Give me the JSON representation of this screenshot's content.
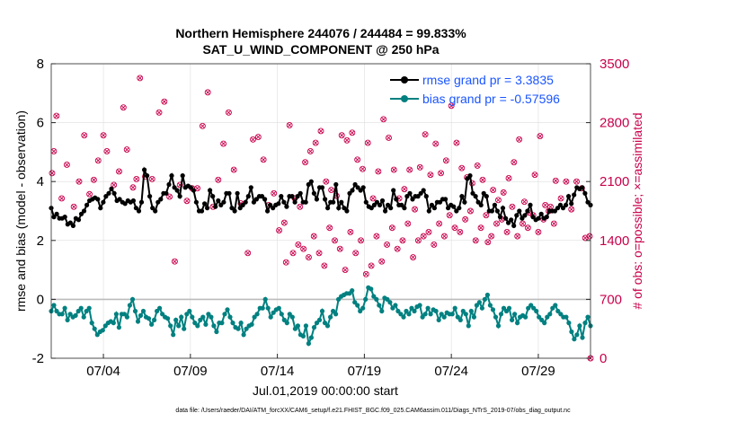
{
  "chart_data": {
    "type": "line",
    "title": "Northern Hemisphere 244076 / 244484 = 99.833%",
    "subtitle": "SAT_U_WIND_COMPONENT @ 250 hPa",
    "xlabel": "Jul.01,2019 00:00:00 start",
    "ylabel": "rmse and bias (model - observation)",
    "y2label": "# of obs: o=possible; ×=assimilated",
    "xticks": [
      {
        "day": 4,
        "label": "07/04"
      },
      {
        "day": 9,
        "label": "07/09"
      },
      {
        "day": 14,
        "label": "07/14"
      },
      {
        "day": 19,
        "label": "07/19"
      },
      {
        "day": 24,
        "label": "07/24"
      },
      {
        "day": 29,
        "label": "07/29"
      }
    ],
    "xlim": [
      1,
      32
    ],
    "ylim": [
      -2,
      8
    ],
    "yticks": [
      -2,
      0,
      2,
      4,
      6,
      8
    ],
    "y2lim": [
      0,
      3500
    ],
    "y2ticks": [
      0,
      700,
      1400,
      2100,
      2800,
      3500
    ],
    "zero_line": 0,
    "footnote": "data file: /Users/raeder/DAI/ATM_forcXX/CAM6_setup/f.e21.FHIST_BGC.f09_025.CAM6assim.011/Diags_NTrS_2019-07/obs_diag_output.nc",
    "series": [
      {
        "name": "rmse grand pr = 3.3835",
        "color": "#000000",
        "values": [
          3.1,
          2.8,
          2.9,
          2.75,
          2.75,
          2.8,
          2.55,
          2.6,
          2.5,
          2.75,
          2.7,
          2.9,
          3.0,
          3.2,
          3.35,
          3.4,
          3.45,
          3.4,
          3.1,
          3.3,
          3.5,
          3.6,
          3.75,
          3.6,
          3.35,
          3.4,
          3.3,
          3.25,
          3.35,
          3.3,
          3.35,
          3.1,
          3.0,
          3.3,
          4.4,
          4.2,
          3.5,
          3.1,
          3.0,
          3.3,
          3.4,
          3.6,
          3.6,
          3.9,
          4.2,
          3.8,
          3.7,
          3.5,
          4.2,
          3.8,
          3.85,
          3.8,
          3.7,
          3.3,
          3.0,
          3.0,
          3.25,
          3.1,
          3.7,
          3.5,
          3.15,
          3.35,
          3.2,
          3.3,
          3.6,
          3.6,
          3.1,
          3.0,
          3.6,
          3.1,
          3.2,
          3.3,
          3.5,
          3.8,
          3.3,
          3.4,
          3.5,
          3.5,
          3.4,
          3.0,
          3.2,
          3.1,
          3.2,
          3.25,
          3.5,
          3.3,
          3.15,
          3.5,
          3.5,
          3.3,
          3.5,
          3.6,
          3.3,
          3.3,
          3.9,
          4.0,
          3.6,
          3.4,
          3.8,
          3.8,
          3.4,
          3.1,
          3.3,
          3.3,
          3.9,
          3.1,
          3.3,
          3.1,
          3.0,
          3.6,
          3.7,
          3.9,
          3.8,
          3.7,
          3.8,
          3.3,
          3.15,
          3.1,
          3.2,
          3.3,
          3.2,
          3.35,
          3.0,
          3.2,
          3.1,
          3.7,
          3.4,
          3.2,
          3.2,
          3.1,
          3.5,
          3.6,
          3.4,
          3.5,
          3.5,
          3.6,
          3.7,
          3.5,
          3.0,
          3.2,
          3.1,
          3.3,
          3.3,
          3.4,
          3.4,
          3.1,
          3.2,
          3.15,
          3.0,
          3.1,
          3.5,
          3.3,
          4.1,
          4.2,
          3.6,
          3.5,
          3.3,
          3.2,
          3.6,
          3.5,
          3.0,
          3.0,
          3.2,
          3.0,
          2.8,
          3.1,
          2.75,
          2.6,
          2.7,
          2.5,
          2.85,
          3.0,
          2.75,
          2.85,
          3.0,
          3.2,
          2.8,
          2.7,
          2.75,
          2.9,
          2.75,
          2.8,
          3.0,
          3.0,
          3.0,
          3.1,
          3.2,
          3.1,
          3.2,
          3.5,
          3.25,
          3.55,
          3.8,
          3.75,
          3.8,
          3.6,
          3.3,
          3.2
        ]
      },
      {
        "name": "bias grand pr = -0.57596",
        "color": "#008080",
        "values": [
          -0.4,
          -0.2,
          -0.4,
          -0.5,
          -0.5,
          -0.3,
          -0.7,
          -0.5,
          -0.6,
          -0.55,
          -0.4,
          -0.3,
          -0.6,
          -0.4,
          -0.3,
          -0.8,
          -1.0,
          -1.2,
          -1.1,
          -1.05,
          -0.9,
          -0.8,
          -0.75,
          -0.8,
          -0.5,
          -0.95,
          -0.5,
          -0.5,
          -0.6,
          -0.2,
          0.0,
          -0.4,
          -0.75,
          -0.55,
          -0.4,
          -0.6,
          -0.65,
          -0.85,
          -0.7,
          -0.4,
          -0.3,
          -0.5,
          -0.6,
          -0.65,
          -0.9,
          -1.2,
          -0.7,
          -0.9,
          -0.6,
          -1.0,
          -0.5,
          -0.4,
          -0.6,
          -0.8,
          -0.9,
          -0.7,
          -0.6,
          -0.85,
          -0.5,
          -0.6,
          -0.9,
          -1.1,
          -0.8,
          -0.8,
          -0.5,
          -0.35,
          -0.6,
          -0.8,
          -0.95,
          -1.0,
          -0.8,
          -1.2,
          -1.0,
          -0.9,
          -0.85,
          -0.6,
          -0.5,
          -0.3,
          -0.3,
          0.0,
          -0.3,
          -0.6,
          -0.45,
          -0.35,
          -0.3,
          -0.5,
          -0.7,
          -0.8,
          -0.5,
          -0.6,
          -1.0,
          -0.9,
          -1.2,
          -1.25,
          -0.9,
          -1.5,
          -1.3,
          -0.95,
          -0.8,
          -0.7,
          -0.4,
          -0.8,
          -0.9,
          -0.6,
          -0.4,
          -0.5,
          0.0,
          0.1,
          0.15,
          0.2,
          0.2,
          0.3,
          -0.1,
          -0.2,
          -0.4,
          -0.3,
          0.0,
          0.4,
          0.35,
          0.1,
          0.0,
          -0.2,
          -0.4,
          0.05,
          0.0,
          -0.1,
          -0.3,
          -0.2,
          -0.4,
          -0.5,
          -0.6,
          -0.4,
          -0.5,
          -0.3,
          -0.4,
          -0.25,
          -0.2,
          -0.6,
          -0.5,
          -0.3,
          -0.5,
          -0.35,
          -0.4,
          -0.7,
          -0.5,
          -0.6,
          -0.45,
          -0.5,
          -0.5,
          -0.3,
          -0.6,
          -0.7,
          -0.4,
          -0.5,
          -0.9,
          -0.4,
          -0.6,
          -0.2,
          -0.1,
          -0.3,
          0.0,
          0.15,
          -0.2,
          -0.35,
          -0.6,
          -0.9,
          -0.5,
          -0.3,
          -0.4,
          -0.3,
          -0.7,
          -0.5,
          -0.8,
          -0.6,
          -0.55,
          -0.6,
          -0.3,
          -0.2,
          -0.3,
          -0.4,
          -0.6,
          -0.7,
          -0.8,
          -0.6,
          -0.5,
          -0.3,
          -0.2,
          -0.4,
          -0.5,
          -0.6,
          -0.6,
          -0.8,
          -1.1,
          -1.35,
          -1.2,
          -0.9,
          -1.3,
          -0.8,
          -0.6,
          -0.9
        ]
      }
    ],
    "obs_count_points": [
      {
        "day": 1.05,
        "n": 2200
      },
      {
        "day": 1.15,
        "n": 2460
      },
      {
        "day": 1.3,
        "n": 2880
      },
      {
        "day": 1.6,
        "n": 1900
      },
      {
        "day": 1.9,
        "n": 2300
      },
      {
        "day": 2.3,
        "n": 1800
      },
      {
        "day": 2.6,
        "n": 2100
      },
      {
        "day": 2.9,
        "n": 2650
      },
      {
        "day": 3.2,
        "n": 1950
      },
      {
        "day": 3.45,
        "n": 2120
      },
      {
        "day": 3.7,
        "n": 2350
      },
      {
        "day": 4.0,
        "n": 2650
      },
      {
        "day": 4.2,
        "n": 2460
      },
      {
        "day": 4.6,
        "n": 2060
      },
      {
        "day": 4.9,
        "n": 2220
      },
      {
        "day": 5.15,
        "n": 2980
      },
      {
        "day": 5.35,
        "n": 2480
      },
      {
        "day": 5.7,
        "n": 2030
      },
      {
        "day": 5.9,
        "n": 2130
      },
      {
        "day": 6.1,
        "n": 3330
      },
      {
        "day": 6.4,
        "n": 2160
      },
      {
        "day": 6.8,
        "n": 2130
      },
      {
        "day": 7.2,
        "n": 2920
      },
      {
        "day": 7.5,
        "n": 3050
      },
      {
        "day": 7.8,
        "n": 1920
      },
      {
        "day": 8.1,
        "n": 1150
      },
      {
        "day": 8.4,
        "n": 2060
      },
      {
        "day": 8.8,
        "n": 1870
      },
      {
        "day": 9.1,
        "n": 2020
      },
      {
        "day": 9.4,
        "n": 2020
      },
      {
        "day": 9.7,
        "n": 2760
      },
      {
        "day": 10.0,
        "n": 3160
      },
      {
        "day": 10.3,
        "n": 1800
      },
      {
        "day": 10.6,
        "n": 2120
      },
      {
        "day": 10.9,
        "n": 2550
      },
      {
        "day": 11.2,
        "n": 2920
      },
      {
        "day": 11.5,
        "n": 2240
      },
      {
        "day": 11.9,
        "n": 1840
      },
      {
        "day": 12.3,
        "n": 1250
      },
      {
        "day": 12.6,
        "n": 2600
      },
      {
        "day": 12.9,
        "n": 2630
      },
      {
        "day": 13.2,
        "n": 2360
      },
      {
        "day": 13.5,
        "n": 1820
      },
      {
        "day": 13.8,
        "n": 1960
      },
      {
        "day": 14.1,
        "n": 1520
      },
      {
        "day": 14.4,
        "n": 1610
      },
      {
        "day": 14.7,
        "n": 2770
      },
      {
        "day": 15.0,
        "n": 1900
      },
      {
        "day": 15.3,
        "n": 1800
      },
      {
        "day": 15.6,
        "n": 2330
      },
      {
        "day": 15.9,
        "n": 2460
      },
      {
        "day": 16.2,
        "n": 2560
      },
      {
        "day": 16.5,
        "n": 2700
      },
      {
        "day": 16.8,
        "n": 2100
      },
      {
        "day": 17.1,
        "n": 2000
      },
      {
        "day": 17.4,
        "n": 1930
      },
      {
        "day": 17.7,
        "n": 2650
      },
      {
        "day": 18.0,
        "n": 2590
      },
      {
        "day": 18.3,
        "n": 2680
      },
      {
        "day": 18.6,
        "n": 2360
      },
      {
        "day": 18.9,
        "n": 2250
      },
      {
        "day": 19.2,
        "n": 2560
      },
      {
        "day": 19.5,
        "n": 1900
      },
      {
        "day": 19.8,
        "n": 2220
      },
      {
        "day": 20.1,
        "n": 2840
      },
      {
        "day": 20.4,
        "n": 2620
      },
      {
        "day": 20.7,
        "n": 2240
      },
      {
        "day": 21.0,
        "n": 1900
      },
      {
        "day": 21.3,
        "n": 2010
      },
      {
        "day": 21.6,
        "n": 2240
      },
      {
        "day": 21.9,
        "n": 1770
      },
      {
        "day": 22.2,
        "n": 2270
      },
      {
        "day": 22.5,
        "n": 2660
      },
      {
        "day": 22.8,
        "n": 2180
      },
      {
        "day": 23.1,
        "n": 2550
      },
      {
        "day": 23.4,
        "n": 2200
      },
      {
        "day": 23.7,
        "n": 2350
      },
      {
        "day": 24.0,
        "n": 3000
      },
      {
        "day": 24.3,
        "n": 2560
      },
      {
        "day": 24.6,
        "n": 2260
      },
      {
        "day": 24.9,
        "n": 2150
      },
      {
        "day": 25.2,
        "n": 2080
      },
      {
        "day": 25.5,
        "n": 2290
      },
      {
        "day": 25.8,
        "n": 2120
      },
      {
        "day": 26.1,
        "n": 1380
      },
      {
        "day": 26.4,
        "n": 2000
      },
      {
        "day": 26.7,
        "n": 1880
      },
      {
        "day": 27.0,
        "n": 1970
      },
      {
        "day": 27.3,
        "n": 2140
      },
      {
        "day": 27.6,
        "n": 2330
      },
      {
        "day": 27.9,
        "n": 2600
      },
      {
        "day": 28.2,
        "n": 1860
      },
      {
        "day": 28.5,
        "n": 1730
      },
      {
        "day": 28.8,
        "n": 2180
      },
      {
        "day": 29.1,
        "n": 2640
      },
      {
        "day": 29.4,
        "n": 1820
      },
      {
        "day": 29.7,
        "n": 1800
      },
      {
        "day": 30.0,
        "n": 2110
      },
      {
        "day": 30.3,
        "n": 1900
      },
      {
        "day": 30.6,
        "n": 2100
      },
      {
        "day": 30.9,
        "n": 1770
      },
      {
        "day": 31.2,
        "n": 2100
      },
      {
        "day": 31.5,
        "n": 2020
      },
      {
        "day": 31.7,
        "n": 1430
      },
      {
        "day": 31.95,
        "n": 1450
      }
    ],
    "obs_count_extra": [
      {
        "day": 14.5,
        "n": 1140
      },
      {
        "day": 14.9,
        "n": 1250
      },
      {
        "day": 15.2,
        "n": 1350
      },
      {
        "day": 15.5,
        "n": 1300
      },
      {
        "day": 15.8,
        "n": 1200
      },
      {
        "day": 16.1,
        "n": 1450
      },
      {
        "day": 16.4,
        "n": 1250
      },
      {
        "day": 16.7,
        "n": 1100
      },
      {
        "day": 17.0,
        "n": 1550
      },
      {
        "day": 17.3,
        "n": 1400
      },
      {
        "day": 17.6,
        "n": 1300
      },
      {
        "day": 17.9,
        "n": 1050
      },
      {
        "day": 18.2,
        "n": 1500
      },
      {
        "day": 18.5,
        "n": 1250
      },
      {
        "day": 18.8,
        "n": 1400
      },
      {
        "day": 19.1,
        "n": 1000
      },
      {
        "day": 19.4,
        "n": 1100
      },
      {
        "day": 19.7,
        "n": 1450
      },
      {
        "day": 20.0,
        "n": 1150
      },
      {
        "day": 20.3,
        "n": 1350
      },
      {
        "day": 20.6,
        "n": 1550
      },
      {
        "day": 20.9,
        "n": 1300
      },
      {
        "day": 21.2,
        "n": 1400
      },
      {
        "day": 21.5,
        "n": 1600
      },
      {
        "day": 21.8,
        "n": 1200
      },
      {
        "day": 22.1,
        "n": 1400
      },
      {
        "day": 22.4,
        "n": 1450
      },
      {
        "day": 22.7,
        "n": 1500
      },
      {
        "day": 23.0,
        "n": 1350
      },
      {
        "day": 23.3,
        "n": 1600
      },
      {
        "day": 23.6,
        "n": 1450
      },
      {
        "day": 23.9,
        "n": 1700
      },
      {
        "day": 24.2,
        "n": 1550
      },
      {
        "day": 24.5,
        "n": 1500
      },
      {
        "day": 24.8,
        "n": 1650
      },
      {
        "day": 25.1,
        "n": 1750
      },
      {
        "day": 25.4,
        "n": 1400
      },
      {
        "day": 25.7,
        "n": 1550
      },
      {
        "day": 26.0,
        "n": 1700
      },
      {
        "day": 26.3,
        "n": 1450
      },
      {
        "day": 26.6,
        "n": 1600
      },
      {
        "day": 26.9,
        "n": 1650
      },
      {
        "day": 27.2,
        "n": 1500
      },
      {
        "day": 27.5,
        "n": 1800
      },
      {
        "day": 27.8,
        "n": 1450
      },
      {
        "day": 28.1,
        "n": 1600
      },
      {
        "day": 28.4,
        "n": 1550
      },
      {
        "day": 28.7,
        "n": 1700
      },
      {
        "day": 29.0,
        "n": 1500
      },
      {
        "day": 29.3,
        "n": 1650
      },
      {
        "day": 29.6,
        "n": 1750
      },
      {
        "day": 29.9,
        "n": 1600
      },
      {
        "day": 32.0,
        "n": 0
      }
    ],
    "obs_count_color": "#c8004b"
  }
}
